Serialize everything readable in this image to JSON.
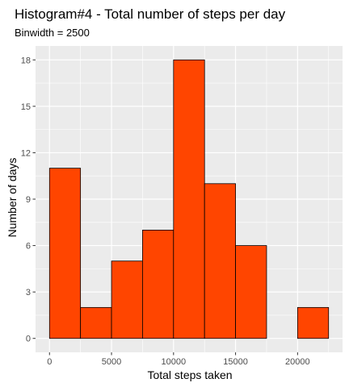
{
  "chart_data": {
    "type": "bar",
    "title": "Histogram#4 - Total number of steps per day",
    "subtitle": "Binwidth = 2500",
    "xlabel": "Total steps taken",
    "ylabel": "Number of days",
    "binwidth": 2500,
    "bins": [
      {
        "start": 0,
        "end": 2500,
        "count": 11
      },
      {
        "start": 2500,
        "end": 5000,
        "count": 2
      },
      {
        "start": 5000,
        "end": 7500,
        "count": 5
      },
      {
        "start": 7500,
        "end": 10000,
        "count": 7
      },
      {
        "start": 10000,
        "end": 12500,
        "count": 18
      },
      {
        "start": 12500,
        "end": 15000,
        "count": 10
      },
      {
        "start": 15000,
        "end": 17500,
        "count": 6
      },
      {
        "start": 17500,
        "end": 20000,
        "count": 0
      },
      {
        "start": 20000,
        "end": 22500,
        "count": 2
      }
    ],
    "xlim": [
      -1125,
      23625
    ],
    "ylim": [
      -0.9,
      18.9
    ],
    "x_ticks": [
      0,
      5000,
      10000,
      15000,
      20000
    ],
    "y_ticks": [
      0,
      3,
      6,
      9,
      12,
      15,
      18
    ],
    "grid": true,
    "legend": "none",
    "colors": {
      "bar_fill": "#ff4500",
      "bar_outline": "#000000",
      "panel_background": "#ebebeb",
      "grid_line": "#ffffff"
    }
  }
}
